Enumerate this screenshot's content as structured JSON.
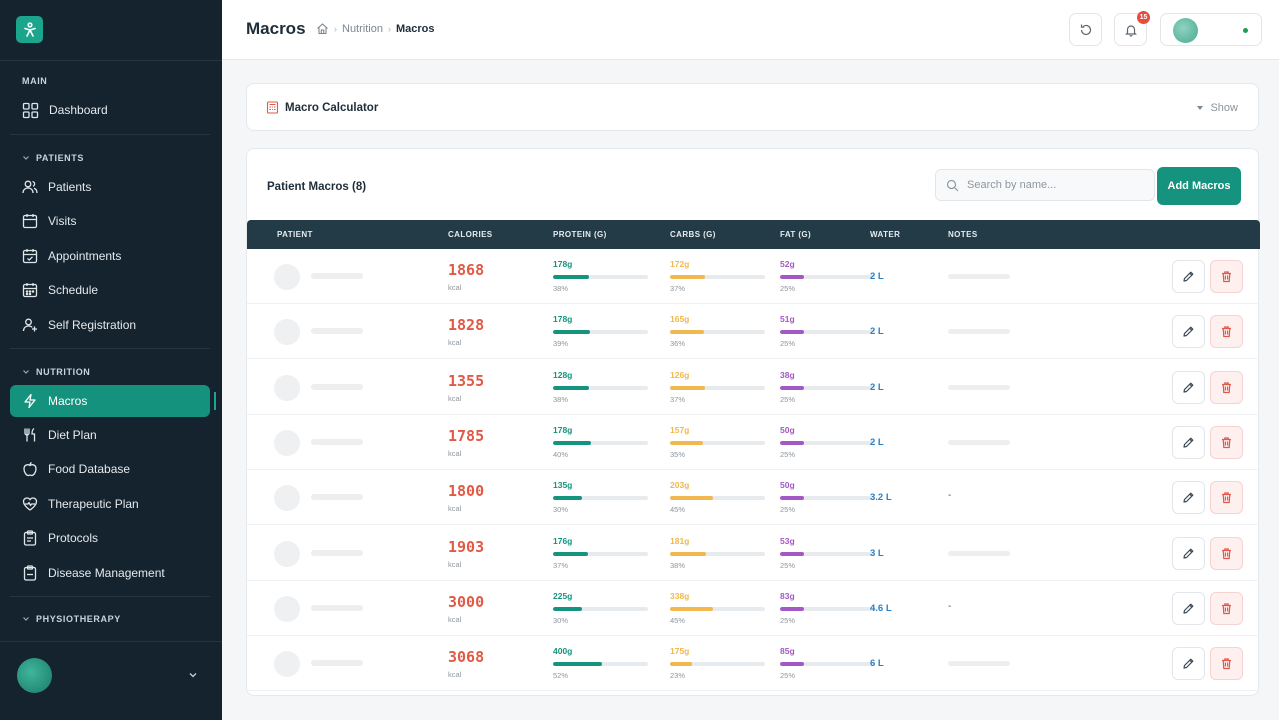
{
  "sidebar": {
    "sections": [
      {
        "label": "MAIN"
      },
      {
        "label": "PATIENTS"
      },
      {
        "label": "NUTRITION"
      },
      {
        "label": "PHYSIOTHERAPY"
      }
    ],
    "items": [
      {
        "label": "Dashboard",
        "icon": "grid-icon"
      },
      {
        "label": "Patients",
        "icon": "users-icon"
      },
      {
        "label": "Visits",
        "icon": "calendar-icon"
      },
      {
        "label": "Appointments",
        "icon": "calendar-check-icon"
      },
      {
        "label": "Schedule",
        "icon": "calendar-grid-icon"
      },
      {
        "label": "Self Registration",
        "icon": "user-plus-icon"
      },
      {
        "label": "Macros",
        "icon": "zap-icon",
        "active": true
      },
      {
        "label": "Diet Plan",
        "icon": "utensils-icon"
      },
      {
        "label": "Food Database",
        "icon": "apple-icon"
      },
      {
        "label": "Therapeutic Plan",
        "icon": "heart-pulse-icon"
      },
      {
        "label": "Protocols",
        "icon": "clipboard-list-icon"
      },
      {
        "label": "Disease Management",
        "icon": "clipboard-icon"
      }
    ]
  },
  "header": {
    "title": "Macros",
    "breadcrumb": [
      "Nutrition",
      "Macros"
    ],
    "notification_count": "15"
  },
  "calculator": {
    "title": "Macro Calculator",
    "toggle_label": "Show"
  },
  "table": {
    "title": "Patient Macros (8)",
    "search_placeholder": "Search by name...",
    "add_label": "Add Macros",
    "columns": [
      "PATIENT",
      "CALORIES",
      "PROTEIN (G)",
      "CARBS (G)",
      "FAT (G)",
      "WATER",
      "NOTES"
    ],
    "unit_kcal": "kcal",
    "rows": [
      {
        "calories": "1868",
        "protein": "178g",
        "protein_pct": "38%",
        "protein_frac": 0.38,
        "carbs": "172g",
        "carbs_pct": "37%",
        "carbs_frac": 0.37,
        "fat": "52g",
        "fat_pct": "25%",
        "fat_frac": 0.25,
        "water": "2 L",
        "notes": ""
      },
      {
        "calories": "1828",
        "protein": "178g",
        "protein_pct": "39%",
        "protein_frac": 0.39,
        "carbs": "165g",
        "carbs_pct": "36%",
        "carbs_frac": 0.36,
        "fat": "51g",
        "fat_pct": "25%",
        "fat_frac": 0.25,
        "water": "2 L",
        "notes": ""
      },
      {
        "calories": "1355",
        "protein": "128g",
        "protein_pct": "38%",
        "protein_frac": 0.38,
        "carbs": "126g",
        "carbs_pct": "37%",
        "carbs_frac": 0.37,
        "fat": "38g",
        "fat_pct": "25%",
        "fat_frac": 0.25,
        "water": "2 L",
        "notes": ""
      },
      {
        "calories": "1785",
        "protein": "178g",
        "protein_pct": "40%",
        "protein_frac": 0.4,
        "carbs": "157g",
        "carbs_pct": "35%",
        "carbs_frac": 0.35,
        "fat": "50g",
        "fat_pct": "25%",
        "fat_frac": 0.25,
        "water": "2 L",
        "notes": ""
      },
      {
        "calories": "1800",
        "protein": "135g",
        "protein_pct": "30%",
        "protein_frac": 0.3,
        "carbs": "203g",
        "carbs_pct": "45%",
        "carbs_frac": 0.45,
        "fat": "50g",
        "fat_pct": "25%",
        "fat_frac": 0.25,
        "water": "3.2 L",
        "notes": "-"
      },
      {
        "calories": "1903",
        "protein": "176g",
        "protein_pct": "37%",
        "protein_frac": 0.37,
        "carbs": "181g",
        "carbs_pct": "38%",
        "carbs_frac": 0.38,
        "fat": "53g",
        "fat_pct": "25%",
        "fat_frac": 0.25,
        "water": "3 L",
        "notes": ""
      },
      {
        "calories": "3000",
        "protein": "225g",
        "protein_pct": "30%",
        "protein_frac": 0.3,
        "carbs": "338g",
        "carbs_pct": "45%",
        "carbs_frac": 0.45,
        "fat": "83g",
        "fat_pct": "25%",
        "fat_frac": 0.25,
        "water": "4.6 L",
        "notes": "-"
      },
      {
        "calories": "3068",
        "protein": "400g",
        "protein_pct": "52%",
        "protein_frac": 0.52,
        "carbs": "175g",
        "carbs_pct": "23%",
        "carbs_frac": 0.23,
        "fat": "85g",
        "fat_pct": "25%",
        "fat_frac": 0.25,
        "water": "6 L",
        "notes": ""
      }
    ]
  },
  "colors": {
    "primary": "#16937e",
    "sidebar_bg": "#15232e",
    "calories": "#e05a45",
    "protein": "#14937f",
    "carbs": "#f0b84e",
    "fat": "#a358c4",
    "water": "#2d7fc4"
  }
}
